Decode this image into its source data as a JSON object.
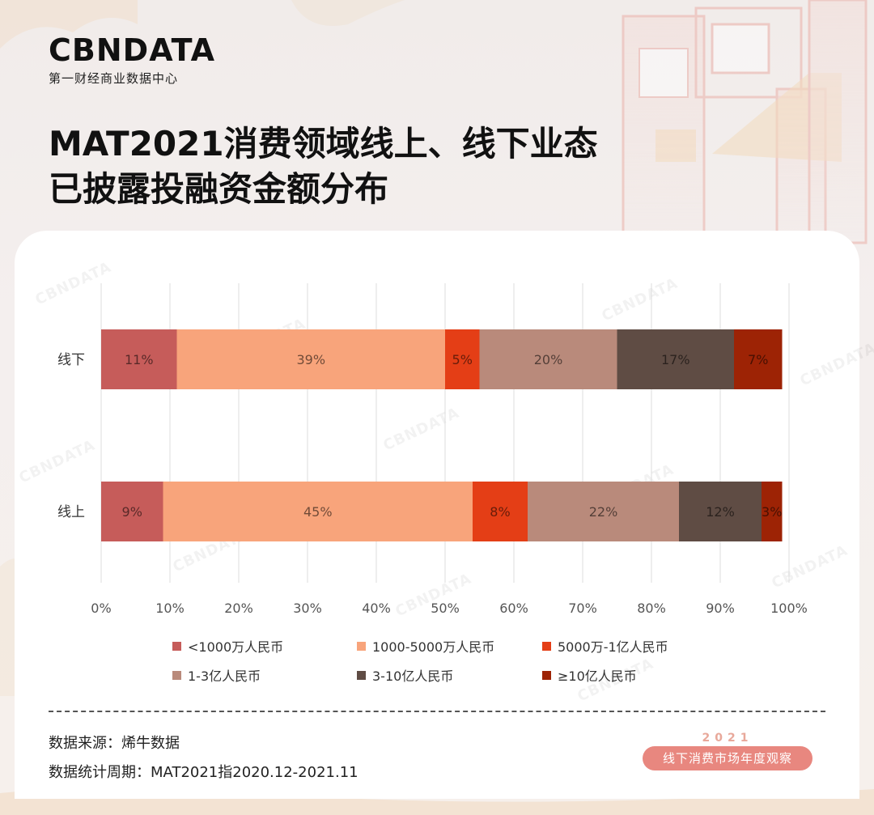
{
  "brand": {
    "logo_text": "CBNDATA",
    "logo_subtitle": "第一财经商业数据中心"
  },
  "title_lines": [
    "MAT2021消费领域线上、线下业态",
    "已披露投融资金额分布"
  ],
  "chart_data": {
    "type": "bar",
    "orientation": "horizontal",
    "stacked": true,
    "categories": [
      "线下",
      "线上"
    ],
    "series": [
      {
        "name": "<1000万人民币",
        "values": [
          11,
          9
        ],
        "labels": [
          "11%",
          "9%"
        ],
        "color": "#c65c5a"
      },
      {
        "name": "1000-5000万人民币",
        "values": [
          39,
          45
        ],
        "labels": [
          "39%",
          "45%"
        ],
        "color": "#f8a47b"
      },
      {
        "name": "5000万-1亿人民币",
        "values": [
          5,
          8
        ],
        "labels": [
          "5%",
          "8%"
        ],
        "color": "#e43e16"
      },
      {
        "name": "1-3亿人民币",
        "values": [
          20,
          22
        ],
        "labels": [
          "20%",
          "22%"
        ],
        "color": "#b98a7b"
      },
      {
        "name": "3-10亿人民币",
        "values": [
          17,
          12
        ],
        "labels": [
          "17%",
          "12%"
        ],
        "color": "#5f4c44"
      },
      {
        "name": "≥10亿人民币",
        "values": [
          7,
          3
        ],
        "labels": [
          "7%",
          "3%"
        ],
        "color": "#9d2305"
      }
    ],
    "x_ticks": [
      "0%",
      "10%",
      "20%",
      "30%",
      "40%",
      "50%",
      "60%",
      "70%",
      "80%",
      "90%",
      "100%"
    ],
    "xlim": [
      0,
      100
    ],
    "grid": true,
    "legend_position": "bottom"
  },
  "source_lines": [
    "数据来源：烯牛数据",
    "数据统计周期：MAT2021指2020.12-2021.11"
  ],
  "badge": {
    "year": "2021",
    "text": "线下消费市场年度观察"
  }
}
